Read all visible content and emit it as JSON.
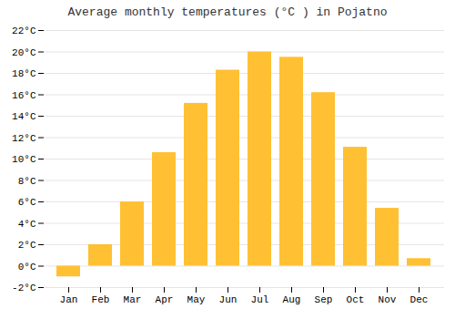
{
  "chart_data": {
    "type": "bar",
    "title": "Average monthly temperatures (°C ) in Pojatno",
    "categories": [
      "Jan",
      "Feb",
      "Mar",
      "Apr",
      "May",
      "Jun",
      "Jul",
      "Aug",
      "Sep",
      "Oct",
      "Nov",
      "Dec"
    ],
    "values": [
      -1.0,
      2.0,
      6.0,
      10.6,
      15.2,
      18.3,
      20.0,
      19.5,
      16.2,
      11.1,
      5.4,
      0.7
    ],
    "color": "#FFC033",
    "ylim": [
      -2,
      22
    ],
    "yticks": [
      {
        "value": -2,
        "label": "-2°C"
      },
      {
        "value": 0,
        "label": "0°C"
      },
      {
        "value": 2,
        "label": "2°C"
      },
      {
        "value": 4,
        "label": "4°C"
      },
      {
        "value": 6,
        "label": "6°C"
      },
      {
        "value": 8,
        "label": "8°C"
      },
      {
        "value": 10,
        "label": "10°C"
      },
      {
        "value": 12,
        "label": "12°C"
      },
      {
        "value": 14,
        "label": "14°C"
      },
      {
        "value": 16,
        "label": "16°C"
      },
      {
        "value": 18,
        "label": "18°C"
      },
      {
        "value": 20,
        "label": "20°C"
      },
      {
        "value": 22,
        "label": "22°C"
      }
    ],
    "grid": true
  }
}
